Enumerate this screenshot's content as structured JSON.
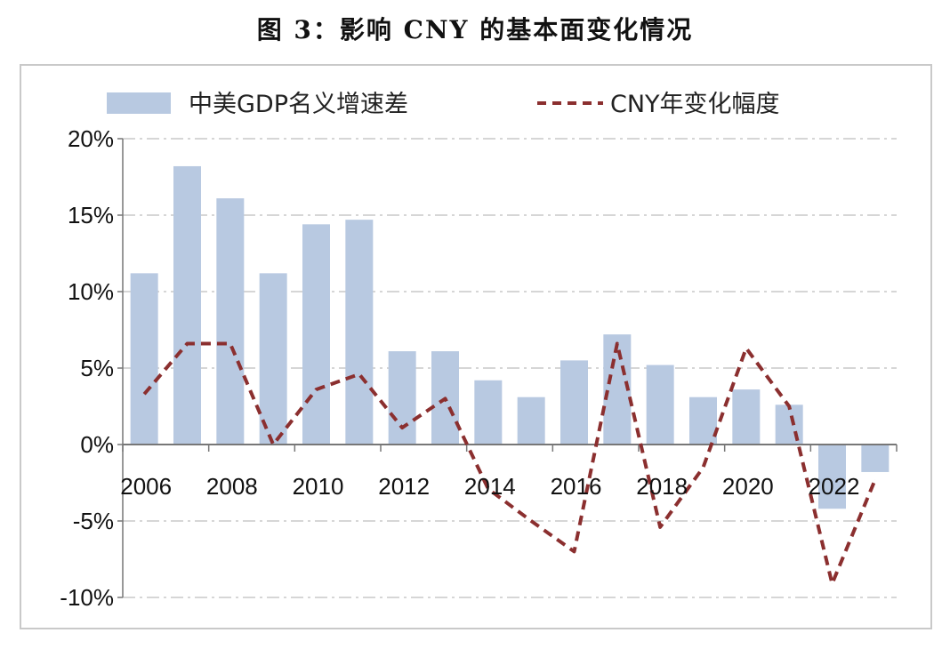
{
  "title": "图 3：影响 CNY 的基本面变化情况",
  "colors": {
    "bar": "#b8c9e1",
    "line": "#8b2f2f",
    "grid": "#c8c8c8",
    "axis": "#777777"
  },
  "chart_data": {
    "type": "bar",
    "categories": [
      "2006",
      "2007",
      "2008",
      "2009",
      "2010",
      "2011",
      "2012",
      "2013",
      "2014",
      "2015",
      "2016",
      "2017",
      "2018",
      "2019",
      "2020",
      "2021",
      "2022",
      "2023"
    ],
    "x_tick_labels": [
      "2006",
      "2008",
      "2010",
      "2012",
      "2014",
      "2016",
      "2018",
      "2020",
      "2022"
    ],
    "y_tick_labels": [
      "20%",
      "15%",
      "10%",
      "5%",
      "0%",
      "-5%",
      "-10%"
    ],
    "ylim": [
      -10,
      20
    ],
    "grid": true,
    "legend_position": "top",
    "series": [
      {
        "name": "中美GDP名义增速差",
        "type": "bar",
        "values": [
          11.2,
          18.2,
          16.1,
          11.2,
          14.4,
          14.7,
          6.1,
          6.1,
          4.2,
          3.1,
          5.5,
          7.2,
          5.2,
          3.1,
          3.6,
          2.6,
          -4.2,
          -1.8
        ]
      },
      {
        "name": "CNY年变化幅度",
        "type": "line",
        "style": "dashed",
        "values": [
          3.3,
          6.6,
          6.6,
          0.0,
          3.6,
          4.6,
          1.1,
          3.0,
          -2.9,
          -5.0,
          -7.0,
          6.6,
          -5.4,
          -1.5,
          6.3,
          2.5,
          -9.1,
          -2.3
        ]
      }
    ]
  }
}
